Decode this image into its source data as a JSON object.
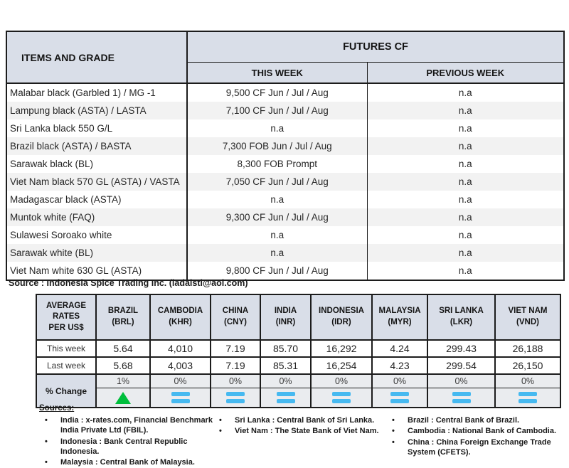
{
  "futures_table": {
    "col1_header": "ITEMS AND GRADE",
    "group_header": "FUTURES CF",
    "subheaders": [
      "THIS WEEK",
      "PREVIOUS WEEK"
    ],
    "rows": [
      {
        "item": "Malabar black (Garbled 1) / MG -1",
        "this_week": "9,500 CF Jun / Jul / Aug",
        "previous_week": "n.a"
      },
      {
        "item": "Lampung black (ASTA) / LASTA",
        "this_week": "7,100 CF Jun / Jul / Aug",
        "previous_week": "n.a"
      },
      {
        "item": "Sri Lanka black 550 G/L",
        "this_week": "n.a",
        "previous_week": "n.a"
      },
      {
        "item": "Brazil black (ASTA) / BASTA",
        "this_week": "7,300 FOB Jun / Jul / Aug",
        "previous_week": "n.a"
      },
      {
        "item": "Sarawak black (BL)",
        "this_week": "8,300 FOB Prompt",
        "previous_week": "n.a"
      },
      {
        "item": "Viet Nam black 570 GL (ASTA) / VASTA",
        "this_week": "7,050 CF Jun / Jul / Aug",
        "previous_week": "n.a"
      },
      {
        "item": "Madagascar black (ASTA)",
        "this_week": "n.a",
        "previous_week": "n.a"
      },
      {
        "item": "Muntok white (FAQ)",
        "this_week": "9,300 CF Jun / Jul / Aug",
        "previous_week": "n.a"
      },
      {
        "item": "Sulawesi Soroako white",
        "this_week": "n.a",
        "previous_week": "n.a"
      },
      {
        "item": "Sarawak  white (BL)",
        "this_week": "n.a",
        "previous_week": "n.a"
      },
      {
        "item": "Viet Nam white 630 GL (ASTA)",
        "this_week": "9,800 CF Jun / Jul / Aug",
        "previous_week": "n.a"
      }
    ],
    "source_note": "Source : Indonesia Spice Trading Inc. (ladaisti@aol.com)"
  },
  "rates_table": {
    "label_header": "AVERAGE RATES PER US$",
    "row_labels": {
      "this_week": "This week",
      "last_week": "Last week",
      "pct_change": "% Change"
    },
    "columns": [
      {
        "country": "BRAZIL",
        "code": "(BRL)",
        "this_week": "5.64",
        "last_week": "5.68",
        "pct": "1%",
        "trend": "up"
      },
      {
        "country": "CAMBODIA",
        "code": "(KHR)",
        "this_week": "4,010",
        "last_week": "4,003",
        "pct": "0%",
        "trend": "flat"
      },
      {
        "country": "CHINA",
        "code": "(CNY)",
        "this_week": "7.19",
        "last_week": "7.19",
        "pct": "0%",
        "trend": "flat"
      },
      {
        "country": "INDIA",
        "code": "(INR)",
        "this_week": "85.70",
        "last_week": "85.31",
        "pct": "0%",
        "trend": "flat"
      },
      {
        "country": "INDONESIA",
        "code": "(IDR)",
        "this_week": "16,292",
        "last_week": "16,254",
        "pct": "0%",
        "trend": "flat"
      },
      {
        "country": "MALAYSIA",
        "code": "(MYR)",
        "this_week": "4.24",
        "last_week": "4.23",
        "pct": "0%",
        "trend": "flat"
      },
      {
        "country": "SRI LANKA",
        "code": "(LKR)",
        "this_week": "299.43",
        "last_week": "299.54",
        "pct": "0%",
        "trend": "flat"
      },
      {
        "country": "VIET NAM",
        "code": "(VND)",
        "this_week": "26,188",
        "last_week": "26,150",
        "pct": "0%",
        "trend": "flat"
      }
    ]
  },
  "sources": {
    "heading": "Sources:",
    "col1": [
      "India : x-rates.com, Financial Benchmark India Private Ltd (FBIL).",
      "Indonesia : Bank Central Republic Indonesia.",
      "Malaysia : Central Bank of Malaysia."
    ],
    "col2": [
      "Sri Lanka : Central Bank of Sri Lanka.",
      "Viet Nam : The State Bank of Viet Nam."
    ],
    "col3": [
      "Brazil :  Central Bank of Brazil.",
      "Cambodia : National Bank of Cambodia.",
      "China : China Foreign Exchange Trade System (CFETS)."
    ]
  },
  "colors": {
    "header_bg": "#d9dee8",
    "alt_row_bg": "#f2f2f2",
    "change_bg": "#eaecef",
    "up_green": "#00be3c",
    "flat_blue": "#46b9f0"
  }
}
